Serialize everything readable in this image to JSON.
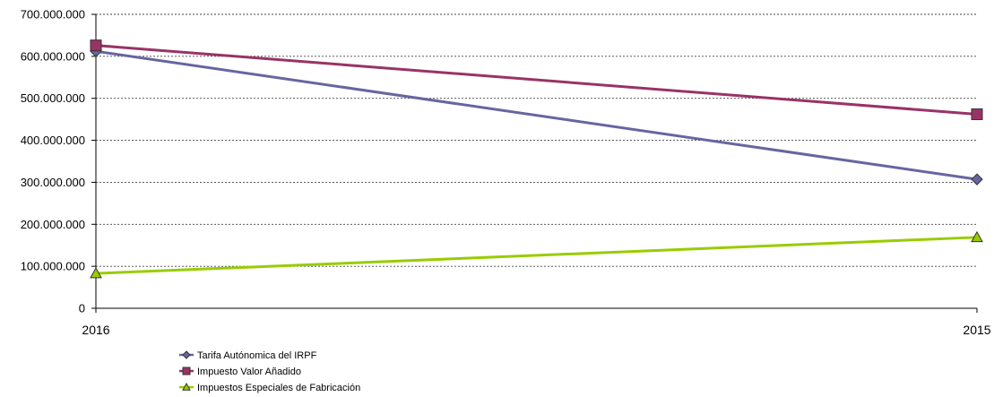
{
  "chart_data": {
    "type": "line",
    "categories": [
      "2016",
      "2015"
    ],
    "ylim": [
      0,
      700000000
    ],
    "yticks": [
      0,
      100000000,
      200000000,
      300000000,
      400000000,
      500000000,
      600000000,
      700000000
    ],
    "ytick_labels": [
      "0",
      "100.000.000",
      "200.000.000",
      "300.000.000",
      "400.000.000",
      "500.000.000",
      "600.000.000",
      "700.000.000"
    ],
    "grid": true,
    "legend_position": "bottom-left",
    "series": [
      {
        "name": "Tarifa Autónomica del IRPF",
        "values": [
          612000000,
          307000000
        ],
        "color": "#6666a0",
        "marker": "diamond",
        "marker_fill": "#6666a0"
      },
      {
        "name": "Impuesto Valor Añadido",
        "values": [
          626000000,
          462000000
        ],
        "color": "#993366",
        "marker": "square",
        "marker_fill": "#993366"
      },
      {
        "name": "Impuestos Especiales de Fabricación",
        "values": [
          83000000,
          169000000
        ],
        "color": "#99cc00",
        "marker": "triangle",
        "marker_fill": "#99cc00"
      }
    ]
  }
}
